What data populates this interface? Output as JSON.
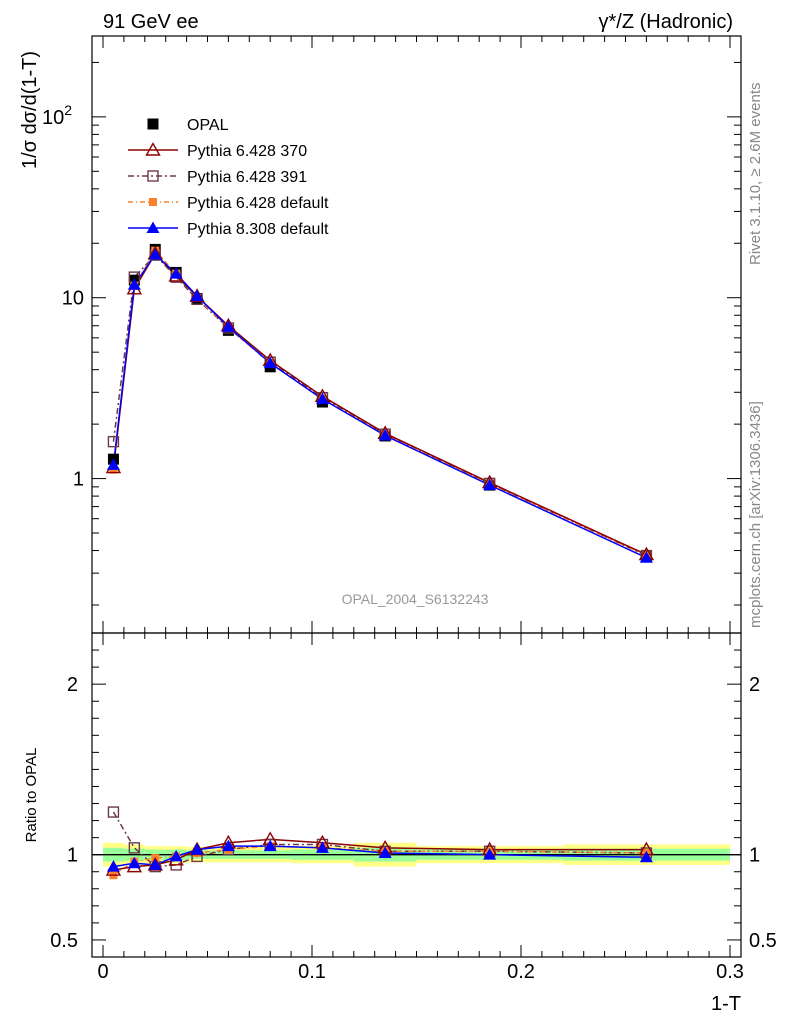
{
  "header": {
    "left": "91 GeV ee",
    "right": "γ*/Z (Hadronic)"
  },
  "side_labels": {
    "rivet": "Rivet 3.1.10, ≥ 2.6M events",
    "mcplots": "mcplots.cern.ch [arXiv:1306.3436]"
  },
  "watermark": "OPAL_2004_S6132243",
  "colors": {
    "opal": "#000000",
    "p370": "#8b0000",
    "p391": "#6b3a4a",
    "p6def": "#ff7f2a",
    "p8def": "#0000ff",
    "band_inner": "#99ff99",
    "band_outer": "#ffff88"
  },
  "chart_data": [
    {
      "type": "line",
      "ylabel": "1/σ dσ/d(1-T)",
      "yscale": "log",
      "xlim": [
        0,
        0.3
      ],
      "ylim": [
        0.14,
        280
      ],
      "y_ticks": [
        {
          "value": 1,
          "label": "1"
        },
        {
          "value": 10,
          "label": "10"
        },
        {
          "value": 100,
          "label": "10",
          "sup": "2"
        }
      ],
      "x": [
        0.005,
        0.015,
        0.025,
        0.035,
        0.045,
        0.06,
        0.08,
        0.105,
        0.135,
        0.185,
        0.26
      ],
      "legend": [
        {
          "key": "opal",
          "label": "OPAL"
        },
        {
          "key": "p370",
          "label": "Pythia 6.428 370"
        },
        {
          "key": "p391",
          "label": "Pythia 6.428 391"
        },
        {
          "key": "p6def",
          "label": "Pythia 6.428 default"
        },
        {
          "key": "p8def",
          "label": "Pythia 8.308 default"
        }
      ],
      "series": [
        {
          "key": "opal",
          "name": "OPAL",
          "values": [
            1.28,
            12.5,
            18.5,
            13.8,
            9.9,
            6.6,
            4.15,
            2.65,
            1.72,
            0.92,
            0.37
          ]
        },
        {
          "key": "p370",
          "name": "Pythia 6.428 370",
          "values": [
            1.15,
            11.2,
            17.5,
            13.2,
            10.2,
            7.0,
            4.5,
            2.85,
            1.78,
            0.95,
            0.38
          ]
        },
        {
          "key": "p391",
          "name": "Pythia 6.428 391",
          "values": [
            1.6,
            13.0,
            17.2,
            13.0,
            9.8,
            6.8,
            4.4,
            2.8,
            1.76,
            0.94,
            0.375
          ]
        },
        {
          "key": "p6def",
          "name": "Pythia 6.428 default",
          "values": [
            1.12,
            11.6,
            18.2,
            13.6,
            10.0,
            6.8,
            4.35,
            2.75,
            1.75,
            0.94,
            0.375
          ]
        },
        {
          "key": "p8def",
          "name": "Pythia 8.308 default",
          "values": [
            1.19,
            11.8,
            17.3,
            13.6,
            10.2,
            6.9,
            4.35,
            2.75,
            1.73,
            0.92,
            0.365
          ]
        }
      ]
    },
    {
      "type": "line",
      "xlabel": "1-T",
      "ylabel": "Ratio to OPAL",
      "xlim": [
        0,
        0.3
      ],
      "ylim": [
        0.4,
        2.3
      ],
      "x_ticks": [
        {
          "value": 0,
          "label": "0"
        },
        {
          "value": 0.1,
          "label": "0.1"
        },
        {
          "value": 0.2,
          "label": "0.2"
        },
        {
          "value": 0.3,
          "label": "0.3"
        }
      ],
      "y_ticks": [
        {
          "value": 0.5,
          "label": "0.5"
        },
        {
          "value": 1,
          "label": "1"
        },
        {
          "value": 2,
          "label": "2"
        }
      ],
      "x": [
        0.005,
        0.015,
        0.025,
        0.035,
        0.045,
        0.06,
        0.08,
        0.105,
        0.135,
        0.185,
        0.26
      ],
      "uncertainty_bands": {
        "bins": [
          [
            0,
            0.01
          ],
          [
            0.01,
            0.02
          ],
          [
            0.02,
            0.03
          ],
          [
            0.03,
            0.04
          ],
          [
            0.04,
            0.05
          ],
          [
            0.05,
            0.07
          ],
          [
            0.07,
            0.09
          ],
          [
            0.09,
            0.12
          ],
          [
            0.12,
            0.15
          ],
          [
            0.15,
            0.22
          ],
          [
            0.22,
            0.3
          ]
        ],
        "inner": [
          0.04,
          0.035,
          0.03,
          0.03,
          0.025,
          0.025,
          0.025,
          0.03,
          0.04,
          0.03,
          0.035
        ],
        "outer": [
          0.07,
          0.06,
          0.05,
          0.05,
          0.045,
          0.045,
          0.045,
          0.05,
          0.07,
          0.05,
          0.06
        ]
      },
      "series": [
        {
          "key": "p370",
          "name": "Pythia 6.428 370",
          "values": [
            0.91,
            0.93,
            0.94,
            0.97,
            1.03,
            1.07,
            1.09,
            1.07,
            1.04,
            1.03,
            1.03
          ]
        },
        {
          "key": "p391",
          "name": "Pythia 6.428 391",
          "values": [
            1.25,
            1.04,
            0.93,
            0.94,
            0.99,
            1.03,
            1.06,
            1.06,
            1.02,
            1.02,
            1.01
          ]
        },
        {
          "key": "p6def",
          "name": "Pythia 6.428 default",
          "values": [
            0.88,
            0.96,
            0.98,
            0.99,
            1.01,
            1.03,
            1.05,
            1.04,
            1.02,
            1.02,
            1.01
          ]
        },
        {
          "key": "p8def",
          "name": "Pythia 8.308 default",
          "values": [
            0.93,
            0.95,
            0.94,
            0.99,
            1.03,
            1.05,
            1.05,
            1.04,
            1.01,
            1.0,
            0.985
          ]
        }
      ]
    }
  ]
}
